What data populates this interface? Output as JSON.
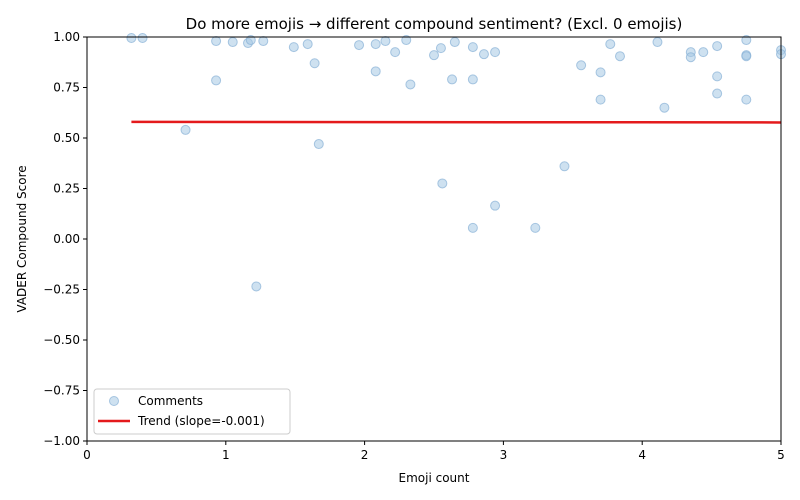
{
  "chart_data": {
    "type": "scatter",
    "title": "Do more emojis → different compound sentiment? (Excl. 0 emojis)",
    "xlabel": "Emoji count",
    "ylabel": "VADER Compound Score",
    "xlim": [
      0,
      5
    ],
    "ylim": [
      -1,
      1
    ],
    "xticks": [
      0,
      1,
      2,
      3,
      4,
      5
    ],
    "xtick_labels": [
      "0",
      "1",
      "2",
      "3",
      "4",
      "5"
    ],
    "yticks": [
      -1,
      -0.75,
      -0.5,
      -0.25,
      0,
      0.25,
      0.5,
      0.75,
      1
    ],
    "ytick_labels": [
      "−1.00",
      "−0.75",
      "−0.50",
      "−0.25",
      "0.00",
      "0.25",
      "0.50",
      "0.75",
      "1.00"
    ],
    "grid": false,
    "legend_position": "lower-left",
    "series": [
      {
        "name": "Comments",
        "kind": "scatter",
        "color": "#a6c8e4",
        "edge_color": "#87b1d6",
        "points": [
          [
            0.32,
            0.995
          ],
          [
            0.4,
            0.995
          ],
          [
            0.93,
            0.98
          ],
          [
            1.05,
            0.975
          ],
          [
            1.16,
            0.97
          ],
          [
            1.18,
            0.985
          ],
          [
            1.27,
            0.98
          ],
          [
            0.93,
            0.785
          ],
          [
            0.71,
            0.54
          ],
          [
            1.22,
            -0.235
          ],
          [
            1.49,
            0.95
          ],
          [
            1.59,
            0.965
          ],
          [
            1.64,
            0.87
          ],
          [
            1.67,
            0.47
          ],
          [
            1.96,
            0.96
          ],
          [
            2.08,
            0.965
          ],
          [
            2.08,
            0.83
          ],
          [
            2.15,
            0.98
          ],
          [
            2.22,
            0.925
          ],
          [
            2.3,
            0.985
          ],
          [
            2.33,
            0.765
          ],
          [
            2.5,
            0.91
          ],
          [
            2.55,
            0.945
          ],
          [
            2.56,
            0.275
          ],
          [
            2.63,
            0.79
          ],
          [
            2.65,
            0.975
          ],
          [
            2.78,
            0.95
          ],
          [
            2.78,
            0.79
          ],
          [
            2.78,
            0.055
          ],
          [
            2.86,
            0.915
          ],
          [
            2.94,
            0.925
          ],
          [
            2.94,
            0.165
          ],
          [
            3.23,
            0.055
          ],
          [
            3.44,
            0.36
          ],
          [
            3.56,
            0.86
          ],
          [
            3.7,
            0.825
          ],
          [
            3.7,
            0.69
          ],
          [
            3.77,
            0.965
          ],
          [
            3.84,
            0.905
          ],
          [
            4.11,
            0.975
          ],
          [
            4.16,
            0.65
          ],
          [
            4.35,
            0.925
          ],
          [
            4.35,
            0.9
          ],
          [
            4.44,
            0.925
          ],
          [
            4.54,
            0.955
          ],
          [
            4.54,
            0.805
          ],
          [
            4.54,
            0.72
          ],
          [
            4.75,
            0.985
          ],
          [
            4.75,
            0.91
          ],
          [
            4.75,
            0.905
          ],
          [
            4.75,
            0.69
          ],
          [
            5.0,
            0.935
          ],
          [
            5.0,
            0.915
          ]
        ]
      },
      {
        "name": "Trend (slope=-0.001)",
        "kind": "line",
        "color": "#e41a1c",
        "points": [
          [
            0.32,
            0.58
          ],
          [
            5.0,
            0.577
          ]
        ]
      }
    ]
  }
}
